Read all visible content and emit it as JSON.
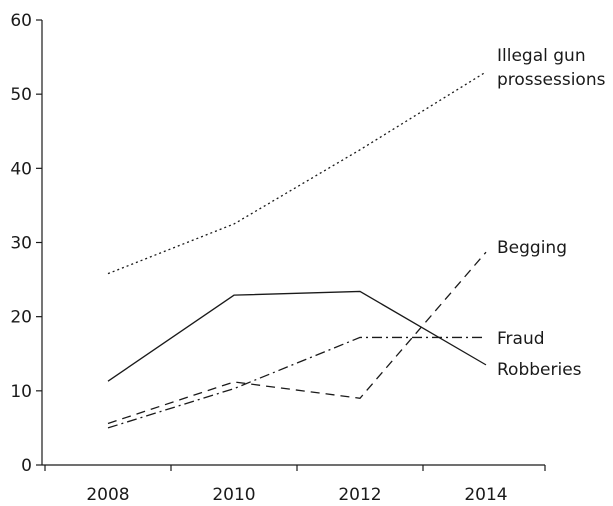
{
  "chart_data": {
    "type": "line",
    "title": "",
    "xlabel": "",
    "ylabel": "",
    "x": [
      2008,
      2010,
      2012,
      2014
    ],
    "x_tick_labels": [
      "2008",
      "2010",
      "2012",
      "2014"
    ],
    "ylim": [
      0,
      60
    ],
    "y_ticks": [
      0,
      10,
      20,
      30,
      40,
      50,
      60
    ],
    "y_tick_labels": [
      "0",
      "10",
      "20",
      "30",
      "40",
      "50",
      "60"
    ],
    "grid": false,
    "legend": "none (series labelled at line ends)",
    "series": [
      {
        "name": "Illegal gun prossessions",
        "name_lines": [
          "Illegal gun",
          "prossessions"
        ],
        "dash": "dotted",
        "values": [
          25.8,
          32.5,
          42.5,
          53.0
        ]
      },
      {
        "name": "Begging",
        "name_lines": [
          "Begging"
        ],
        "dash": "dashed",
        "values": [
          5.6,
          11.2,
          9.0,
          28.7
        ]
      },
      {
        "name": "Fraud",
        "name_lines": [
          "Fraud"
        ],
        "dash": "dashdot",
        "values": [
          5.0,
          10.3,
          17.2,
          17.2
        ]
      },
      {
        "name": "Robberies",
        "name_lines": [
          "Robberies"
        ],
        "dash": "solid",
        "values": [
          11.3,
          22.9,
          23.4,
          13.5
        ]
      }
    ]
  }
}
